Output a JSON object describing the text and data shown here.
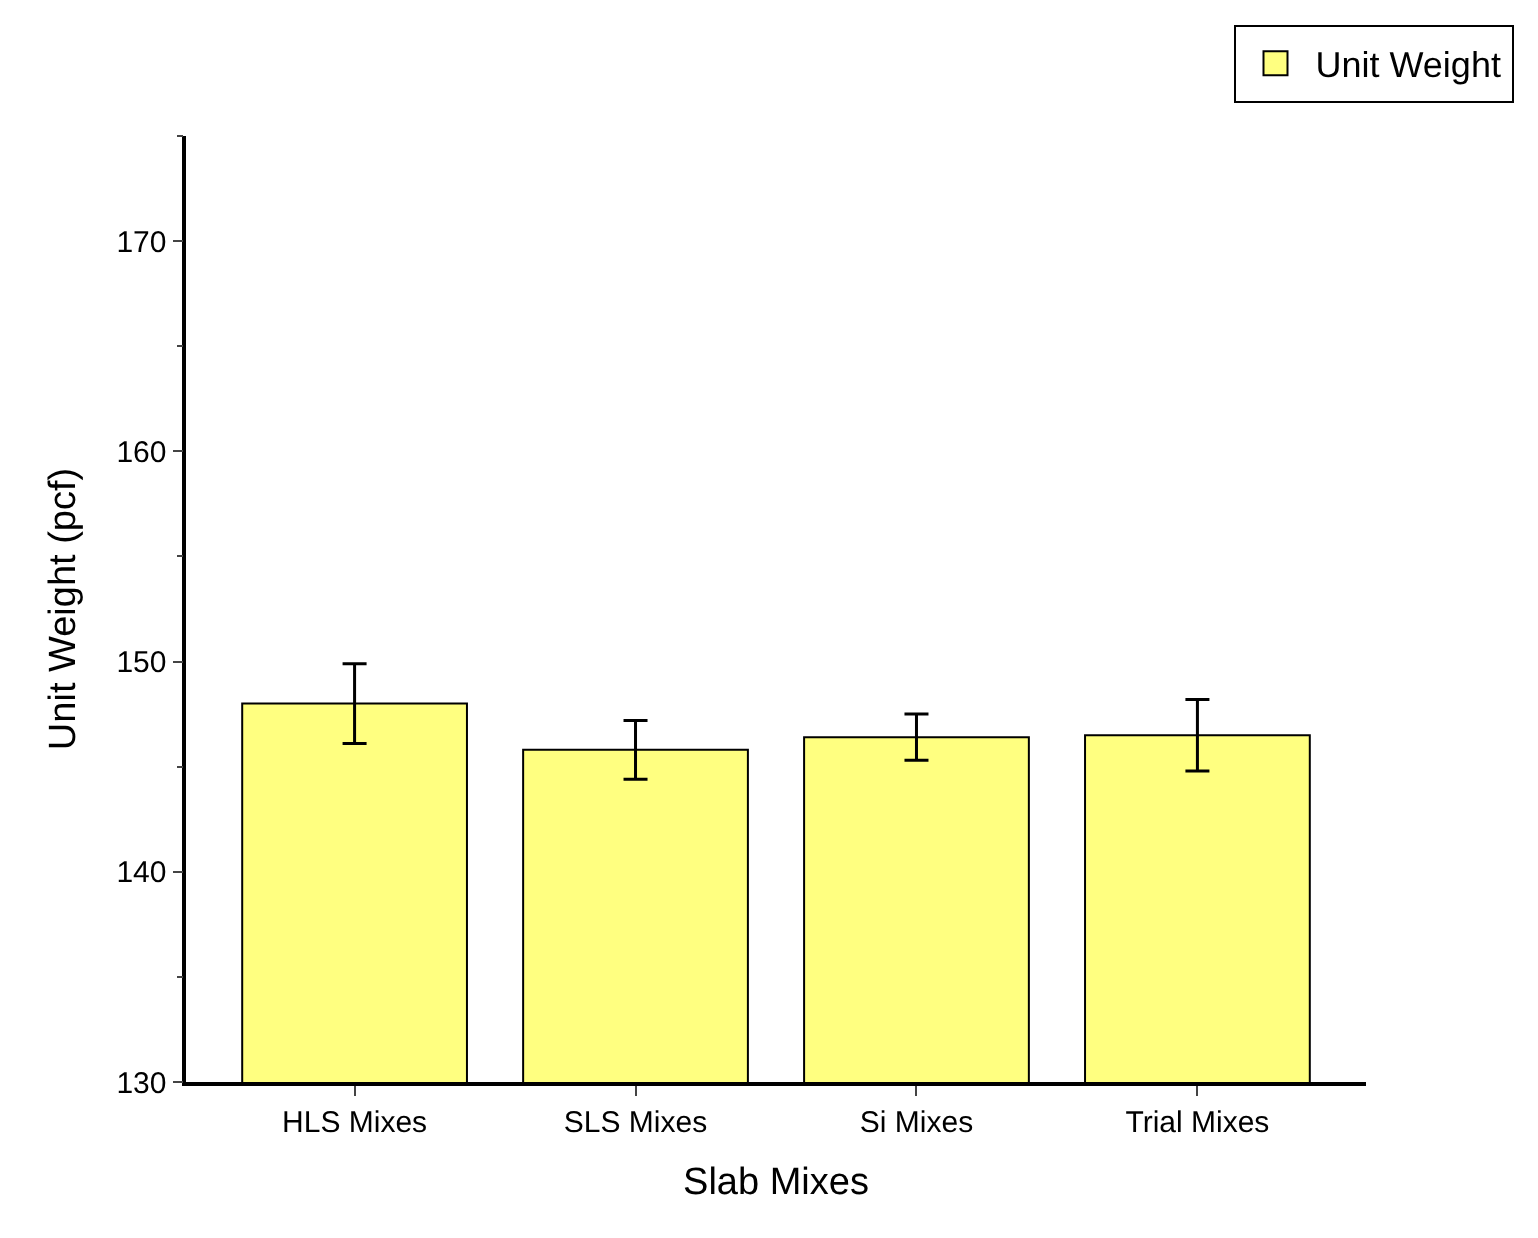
{
  "chart_data": {
    "type": "bar",
    "xlabel": "Slab Mixes",
    "ylabel": "Unit Weight (pcf)",
    "categories": [
      "HLS Mixes",
      "SLS Mixes",
      "Si Mixes",
      "Trial Mixes"
    ],
    "series": [
      {
        "name": "Unit Weight",
        "color": "#ffff80",
        "values": [
          148.0,
          145.8,
          146.4,
          146.5
        ],
        "errors": [
          1.9,
          1.4,
          1.1,
          1.7
        ]
      }
    ],
    "ylim": [
      130,
      175
    ],
    "yticks": [
      130,
      140,
      150,
      160,
      170
    ],
    "legend": "top right"
  }
}
